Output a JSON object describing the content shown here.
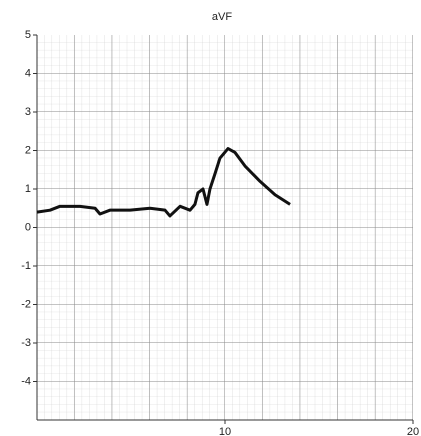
{
  "chart_data": {
    "type": "line",
    "title": "aVF",
    "x": [
      0,
      0.69,
      1.22,
      2.29,
      3.09,
      3.35,
      3.88,
      4.95,
      6.01,
      6.81,
      7.07,
      7.61,
      8.14,
      8.4,
      8.56,
      8.83,
      9.04,
      9.2,
      9.47,
      9.73,
      10.16,
      10.53,
      11.06,
      11.86,
      12.66,
      13.46
    ],
    "series": [
      {
        "color": "#111111",
        "values": [
          0.4,
          0.45,
          0.55,
          0.55,
          0.5,
          0.35,
          0.45,
          0.45,
          0.5,
          0.45,
          0.3,
          0.55,
          0.45,
          0.6,
          0.9,
          1.0,
          0.6,
          1.0,
          1.4,
          1.8,
          2.05,
          1.95,
          1.6,
          1.2,
          0.85,
          0.6
        ]
      }
    ],
    "xlim": [
      0,
      20
    ],
    "xticks": [
      10,
      20
    ],
    "ylim": [
      -5,
      5
    ],
    "yticks": [
      5,
      4,
      3,
      2,
      1,
      0,
      -1,
      -2,
      -3,
      -4
    ]
  }
}
